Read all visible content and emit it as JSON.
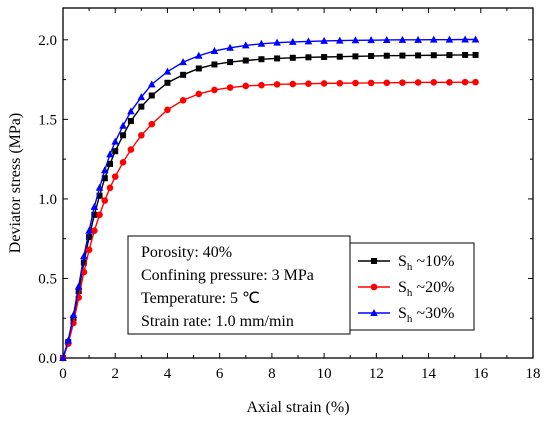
{
  "chart_data": {
    "type": "line",
    "xlabel": "Axial strain (%)",
    "ylabel": "Deviator stress (MPa)",
    "xlim": [
      0,
      18
    ],
    "ylim": [
      0,
      2.2
    ],
    "xticks": [
      "0",
      "2",
      "4",
      "6",
      "8",
      "10",
      "12",
      "14",
      "16",
      "18"
    ],
    "yticks": [
      "0.0",
      "0.5",
      "1.0",
      "1.5",
      "2.0"
    ],
    "legend_position": "right-middle",
    "annotations": [
      "Porosity: 40%",
      "Confining pressure: 3 MPa",
      "Temperature: 5 ℃",
      "Strain rate: 1.0 mm/min"
    ],
    "series": [
      {
        "name": "S_h ~10%",
        "label_main": "S",
        "label_sub": "h",
        "label_rest": " ~10%",
        "color": "#000000",
        "marker": "square",
        "x": [
          0,
          0.2,
          0.4,
          0.6,
          0.8,
          1.0,
          1.2,
          1.4,
          1.6,
          1.8,
          2.0,
          2.3,
          2.6,
          3.0,
          3.4,
          4.0,
          4.6,
          5.2,
          5.8,
          6.4,
          7.0,
          7.6,
          8.2,
          8.8,
          9.4,
          10.0,
          10.6,
          11.2,
          11.8,
          12.4,
          13.0,
          13.6,
          14.2,
          14.8,
          15.4,
          15.8
        ],
        "y": [
          0,
          0.1,
          0.25,
          0.42,
          0.6,
          0.76,
          0.9,
          1.02,
          1.13,
          1.22,
          1.3,
          1.4,
          1.49,
          1.58,
          1.65,
          1.73,
          1.78,
          1.82,
          1.845,
          1.86,
          1.87,
          1.878,
          1.883,
          1.887,
          1.89,
          1.892,
          1.894,
          1.896,
          1.898,
          1.9,
          1.901,
          1.902,
          1.903,
          1.904,
          1.905,
          1.905
        ]
      },
      {
        "name": "S_h ~20%",
        "label_main": "S",
        "label_sub": "h",
        "label_rest": " ~20%",
        "color": "#ff0000",
        "marker": "circle",
        "x": [
          0,
          0.2,
          0.4,
          0.6,
          0.8,
          1.0,
          1.2,
          1.4,
          1.6,
          1.8,
          2.0,
          2.3,
          2.6,
          3.0,
          3.4,
          4.0,
          4.6,
          5.2,
          5.8,
          6.4,
          7.0,
          7.6,
          8.2,
          8.8,
          9.4,
          10.0,
          10.6,
          11.2,
          11.8,
          12.4,
          13.0,
          13.6,
          14.2,
          14.8,
          15.4,
          15.8
        ],
        "y": [
          0,
          0.09,
          0.22,
          0.38,
          0.54,
          0.68,
          0.8,
          0.9,
          0.99,
          1.07,
          1.14,
          1.23,
          1.31,
          1.4,
          1.47,
          1.56,
          1.62,
          1.66,
          1.685,
          1.7,
          1.71,
          1.715,
          1.72,
          1.722,
          1.724,
          1.726,
          1.727,
          1.728,
          1.729,
          1.73,
          1.731,
          1.732,
          1.733,
          1.733,
          1.734,
          1.734
        ]
      },
      {
        "name": "S_h ~30%",
        "label_main": "S",
        "label_sub": "h",
        "label_rest": " ~30%",
        "color": "#0000ff",
        "marker": "triangle",
        "x": [
          0,
          0.2,
          0.4,
          0.6,
          0.8,
          1.0,
          1.2,
          1.4,
          1.6,
          1.8,
          2.0,
          2.3,
          2.6,
          3.0,
          3.4,
          4.0,
          4.6,
          5.2,
          5.8,
          6.4,
          7.0,
          7.6,
          8.2,
          8.8,
          9.4,
          10.0,
          10.6,
          11.2,
          11.8,
          12.4,
          13.0,
          13.6,
          14.2,
          14.8,
          15.4,
          15.8
        ],
        "y": [
          0,
          0.11,
          0.27,
          0.45,
          0.64,
          0.8,
          0.95,
          1.07,
          1.18,
          1.28,
          1.36,
          1.46,
          1.55,
          1.64,
          1.72,
          1.8,
          1.86,
          1.9,
          1.93,
          1.95,
          1.965,
          1.975,
          1.982,
          1.987,
          1.99,
          1.993,
          1.995,
          1.997,
          1.998,
          1.999,
          2.0,
          2.0,
          2.001,
          2.001,
          2.002,
          2.002
        ]
      }
    ]
  }
}
